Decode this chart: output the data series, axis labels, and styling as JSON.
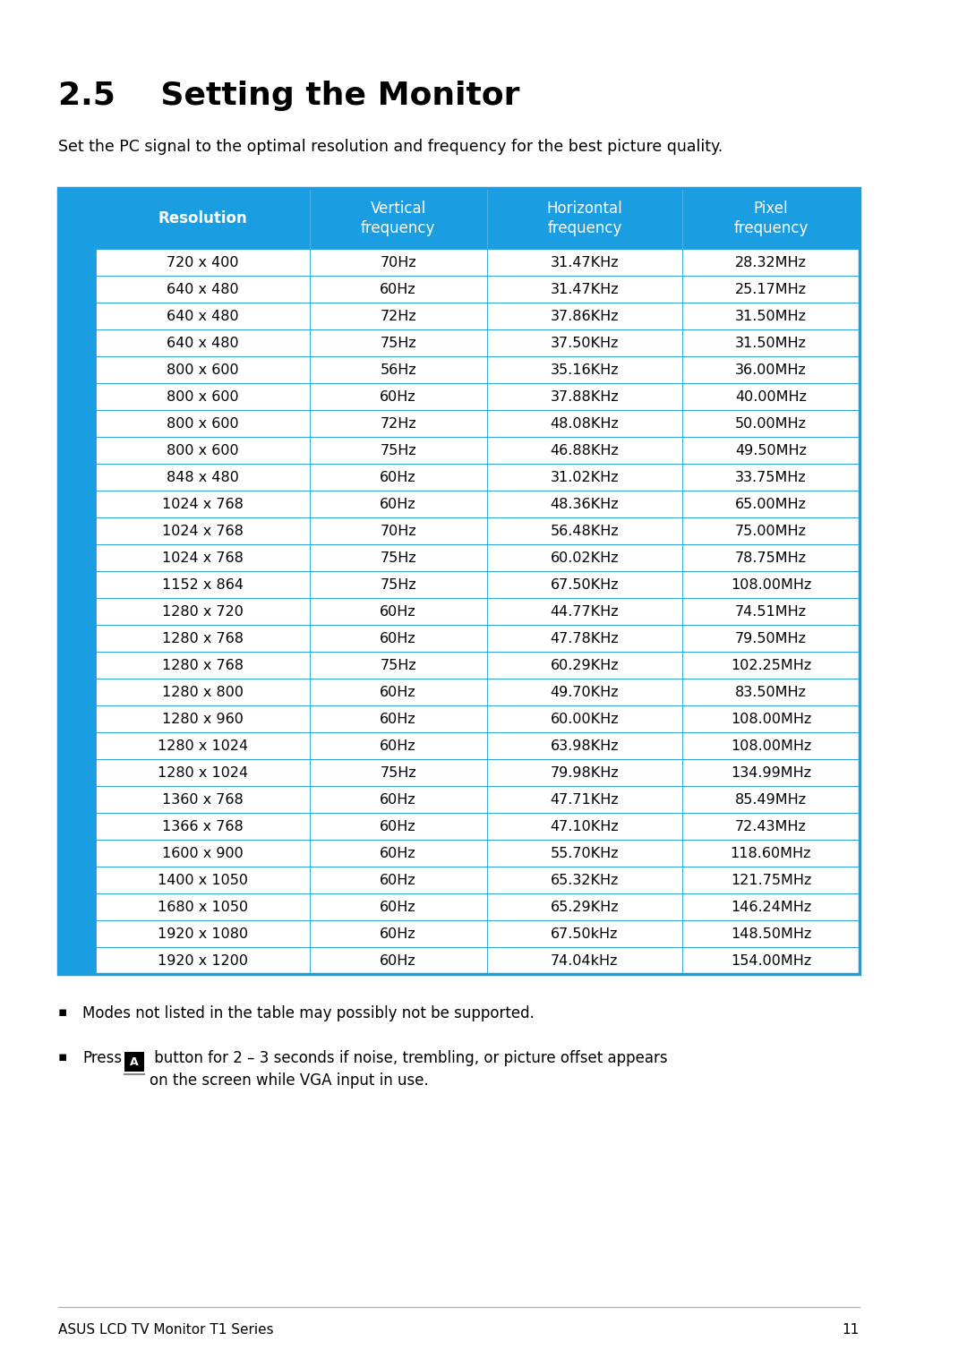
{
  "title": "2.5    Setting the Monitor",
  "subtitle": "Set the PC signal to the optimal resolution and frequency for the best picture quality.",
  "header": [
    "Resolution",
    "Vertical\nfrequency",
    "Horizontal\nfrequency",
    "Pixel\nfrequency"
  ],
  "rows": [
    [
      "720 x 400",
      "70Hz",
      "31.47KHz",
      "28.32MHz"
    ],
    [
      "640 x 480",
      "60Hz",
      "31.47KHz",
      "25.17MHz"
    ],
    [
      "640 x 480",
      "72Hz",
      "37.86KHz",
      "31.50MHz"
    ],
    [
      "640 x 480",
      "75Hz",
      "37.50KHz",
      "31.50MHz"
    ],
    [
      "800 x 600",
      "56Hz",
      "35.16KHz",
      "36.00MHz"
    ],
    [
      "800 x 600",
      "60Hz",
      "37.88KHz",
      "40.00MHz"
    ],
    [
      "800 x 600",
      "72Hz",
      "48.08KHz",
      "50.00MHz"
    ],
    [
      "800 x 600",
      "75Hz",
      "46.88KHz",
      "49.50MHz"
    ],
    [
      "848 x 480",
      "60Hz",
      "31.02KHz",
      "33.75MHz"
    ],
    [
      "1024 x 768",
      "60Hz",
      "48.36KHz",
      "65.00MHz"
    ],
    [
      "1024 x 768",
      "70Hz",
      "56.48KHz",
      "75.00MHz"
    ],
    [
      "1024 x 768",
      "75Hz",
      "60.02KHz",
      "78.75MHz"
    ],
    [
      "1152 x 864",
      "75Hz",
      "67.50KHz",
      "108.00MHz"
    ],
    [
      "1280 x 720",
      "60Hz",
      "44.77KHz",
      "74.51MHz"
    ],
    [
      "1280 x 768",
      "60Hz",
      "47.78KHz",
      "79.50MHz"
    ],
    [
      "1280 x 768",
      "75Hz",
      "60.29KHz",
      "102.25MHz"
    ],
    [
      "1280 x 800",
      "60Hz",
      "49.70KHz",
      "83.50MHz"
    ],
    [
      "1280 x 960",
      "60Hz",
      "60.00KHz",
      "108.00MHz"
    ],
    [
      "1280 x 1024",
      "60Hz",
      "63.98KHz",
      "108.00MHz"
    ],
    [
      "1280 x 1024",
      "75Hz",
      "79.98KHz",
      "134.99MHz"
    ],
    [
      "1360 x 768",
      "60Hz",
      "47.71KHz",
      "85.49MHz"
    ],
    [
      "1366 x 768",
      "60Hz",
      "47.10KHz",
      "72.43MHz"
    ],
    [
      "1600 x 900",
      "60Hz",
      "55.70KHz",
      "118.60MHz"
    ],
    [
      "1400 x 1050",
      "60Hz",
      "65.32KHz",
      "121.75MHz"
    ],
    [
      "1680 x 1050",
      "60Hz",
      "65.29KHz",
      "146.24MHz"
    ],
    [
      "1920 x 1080",
      "60Hz",
      "67.50kHz",
      "148.50MHz"
    ],
    [
      "1920 x 1200",
      "60Hz",
      "74.04kHz",
      "154.00MHz"
    ]
  ],
  "header_bg": "#1a9de1",
  "header_text_color": "#ffffff",
  "row_bg": "#ffffff",
  "row_text_color": "#000000",
  "border_color": "#1a9de1",
  "left_panel_color": "#1a9de1",
  "title_color": "#000000",
  "subtitle_color": "#000000",
  "footer_text": "ASUS LCD TV Monitor T1 Series",
  "footer_page": "11",
  "bullet1": "Modes not listed in the table may possibly not be supported.",
  "bullet2_pre": "Press",
  "bullet2_post": " button for 2 – 3 seconds if noise, trembling, or picture offset appears\non the screen while VGA input in use.",
  "background_color": "#ffffff"
}
